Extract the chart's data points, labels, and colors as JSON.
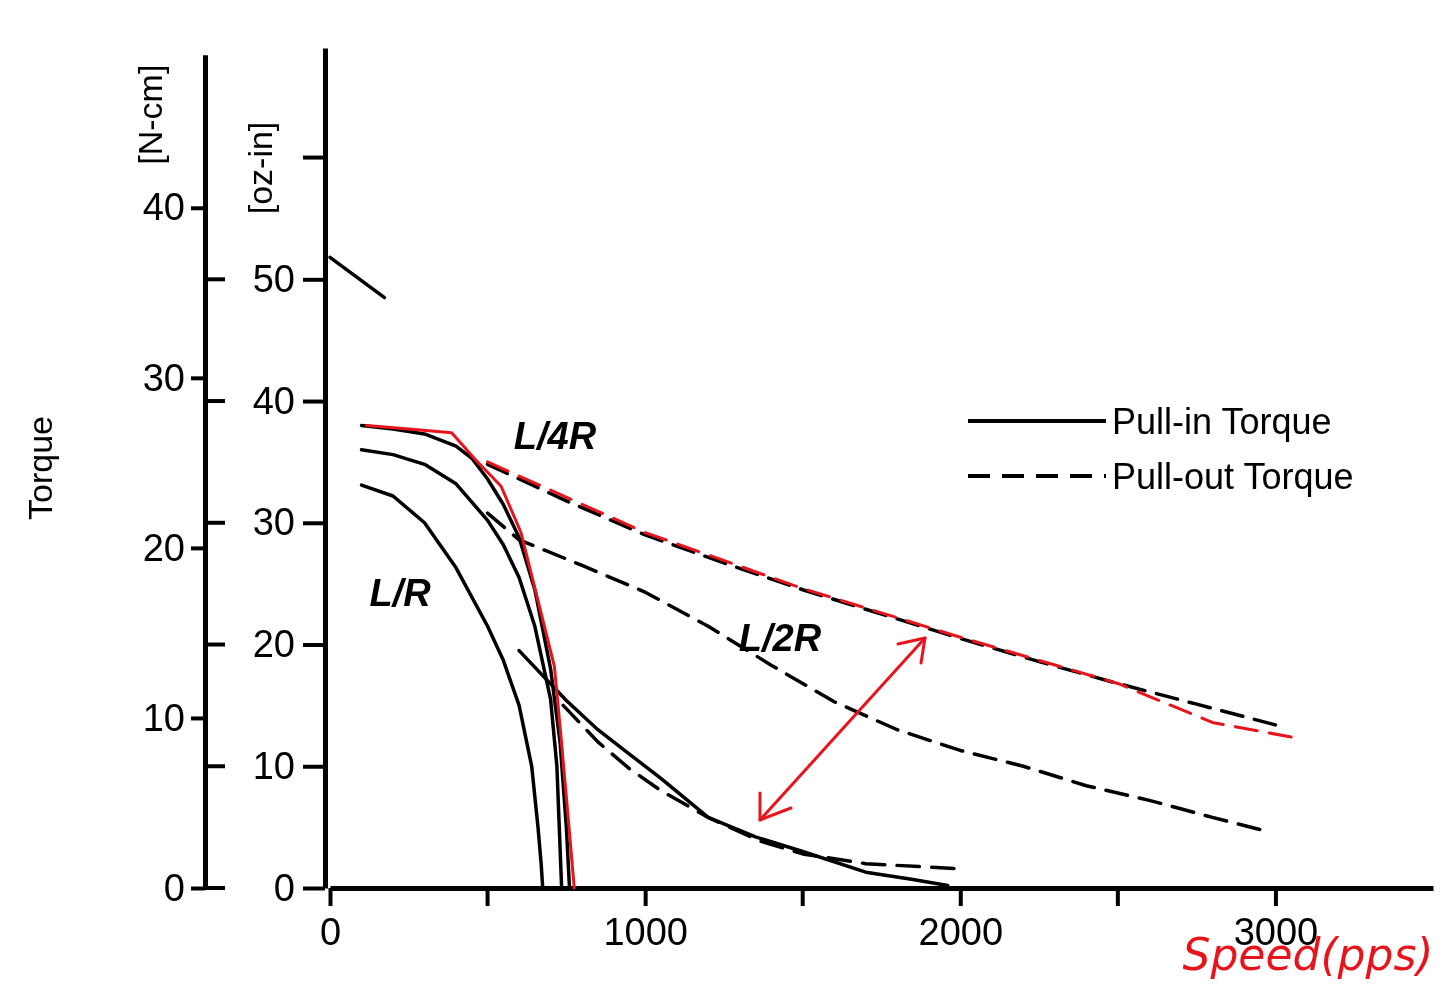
{
  "chart_data": {
    "type": "line",
    "xlabel": "Speed(pps)",
    "ylabel": "[oz-in]",
    "y2label": "[N-cm]",
    "xlim": [
      0,
      3500
    ],
    "xticks": [
      0,
      1000,
      2000,
      3000
    ],
    "ylim": [
      0,
      69
    ],
    "yticks": [
      0,
      10,
      20,
      30,
      40,
      50
    ],
    "y2lim": [
      0,
      49
    ],
    "y2ticks": [
      0,
      10,
      20,
      30,
      40
    ],
    "legend": "right",
    "grid": false,
    "marker": "none",
    "series": [
      {
        "name": "Pull-in Torque",
        "color": "#000000",
        "line_style": "solid",
        "x": [
          100,
          200,
          300,
          400,
          450,
          500,
          550,
          600,
          650,
          700,
          730,
          750,
          760
        ],
        "values": [
          38.0,
          37.7,
          37.3,
          36.3,
          35.3,
          33.6,
          31.5,
          28.8,
          24.5,
          18,
          12,
          5,
          0
        ]
      },
      {
        "color": "#000000",
        "line_style": "solid",
        "x": [
          100,
          200,
          300,
          400,
          500,
          550,
          600,
          650,
          700,
          720,
          735
        ],
        "values": [
          36,
          35.6,
          34.8,
          33.2,
          30.2,
          28.2,
          25.5,
          21.5,
          15.5,
          10,
          0
        ]
      },
      {
        "color": "#000000",
        "line_style": "solid",
        "x": [
          100,
          200,
          300,
          400,
          500,
          550,
          600,
          640,
          660,
          670,
          675
        ],
        "values": [
          33.1,
          32.2,
          30,
          26.3,
          21.5,
          18.7,
          15,
          10,
          5,
          2,
          0
        ]
      },
      {
        "color": "#000000",
        "line_style": "solid",
        "x": [
          600,
          750,
          850,
          950,
          1050,
          1200,
          1350,
          1500,
          1700,
          1850,
          1960
        ],
        "values": [
          19.5,
          15.4,
          13,
          11,
          9,
          5.8,
          4.2,
          3,
          1.3,
          0.7,
          0.2
        ]
      },
      {
        "color": "#000000",
        "line_style": "solid",
        "x": [
          0,
          173
        ],
        "values": [
          51.8,
          48.5
        ]
      },
      {
        "name": "Pull-out Torque",
        "color": "#000000",
        "line_style": "dashed",
        "x": [
          500,
          750,
          1000,
          1250,
          1500,
          1750,
          2000,
          2250,
          2500,
          2750,
          3000
        ],
        "values": [
          34.8,
          31.8,
          29.0,
          26.7,
          24.5,
          22.5,
          20.5,
          18.6,
          16.8,
          15.1,
          13.4
        ]
      },
      {
        "color": "#000000",
        "line_style": "dashed",
        "x": [
          500,
          600,
          800,
          1000,
          1200,
          1400,
          1600,
          1800,
          2000,
          2200,
          2400,
          2600,
          2800,
          2950
        ],
        "values": [
          30.8,
          28.6,
          26.5,
          24.3,
          21.5,
          18.3,
          15.3,
          13,
          11.3,
          10,
          8.4,
          7.2,
          5.8,
          4.8
        ]
      },
      {
        "color": "#000000",
        "line_style": "dashed",
        "x": [
          740,
          850,
          950,
          1050,
          1200,
          1360,
          1500,
          1700,
          1980
        ],
        "values": [
          15,
          12,
          9.8,
          8,
          5.8,
          3.9,
          2.8,
          2,
          1.6
        ]
      },
      {
        "color": "#e8141c",
        "line_style": "solid",
        "x": [
          116,
          250,
          386,
          461,
          543,
          606,
          659,
          712,
          732,
          755,
          775
        ],
        "values": [
          38,
          37.7,
          37.4,
          35.2,
          33,
          29.2,
          23.7,
          18.2,
          12.7,
          6,
          0
        ]
      },
      {
        "color": "#e8141c",
        "line_style": "dashed",
        "x": [
          500,
          1000,
          1500,
          2000,
          2500,
          2800,
          3050
        ],
        "values": [
          35,
          29.2,
          24.6,
          20.6,
          16.8,
          13.6,
          12.4
        ]
      }
    ],
    "annotations": [
      "Torque",
      "L/4R",
      "L/2R",
      "L/R"
    ]
  }
}
